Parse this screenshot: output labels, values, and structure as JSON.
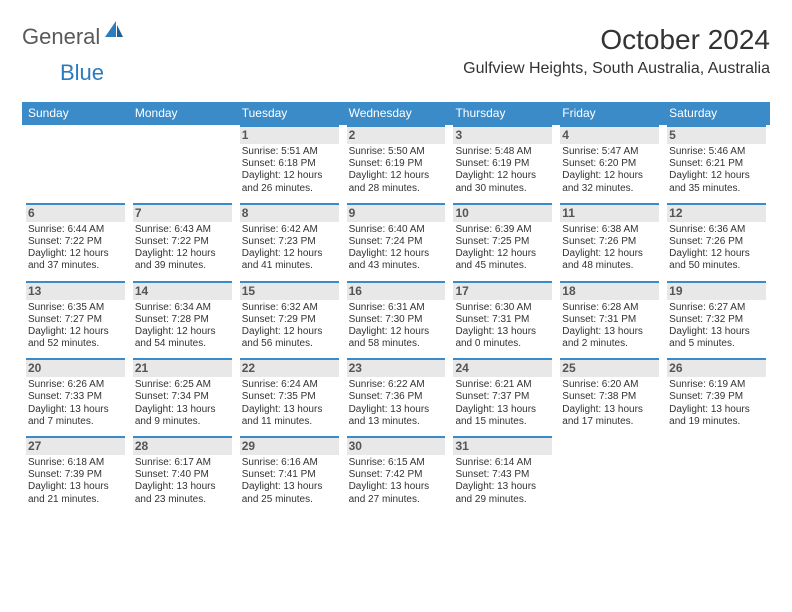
{
  "logo": {
    "text1": "General",
    "text2": "Blue"
  },
  "header": {
    "month": "October 2024",
    "location": "Gulfview Heights, South Australia, Australia"
  },
  "colors": {
    "header_bg": "#3b8bc9",
    "header_fg": "#ffffff",
    "daynum_bg": "#e8e8e8",
    "daynum_border": "#3b8bc9",
    "daynum_fg": "#555555",
    "body_fg": "#333333",
    "logo_gray": "#5a5a5a",
    "logo_blue": "#2b7bbf",
    "page_bg": "#ffffff"
  },
  "typography": {
    "month_fontsize": 28,
    "location_fontsize": 16,
    "dow_fontsize": 12,
    "daynum_fontsize": 12,
    "cell_fontsize": 10
  },
  "days_of_week": [
    "Sunday",
    "Monday",
    "Tuesday",
    "Wednesday",
    "Thursday",
    "Friday",
    "Saturday"
  ],
  "weeks": [
    [
      null,
      null,
      {
        "n": "1",
        "sunrise": "Sunrise: 5:51 AM",
        "sunset": "Sunset: 6:18 PM",
        "dl1": "Daylight: 12 hours",
        "dl2": "and 26 minutes."
      },
      {
        "n": "2",
        "sunrise": "Sunrise: 5:50 AM",
        "sunset": "Sunset: 6:19 PM",
        "dl1": "Daylight: 12 hours",
        "dl2": "and 28 minutes."
      },
      {
        "n": "3",
        "sunrise": "Sunrise: 5:48 AM",
        "sunset": "Sunset: 6:19 PM",
        "dl1": "Daylight: 12 hours",
        "dl2": "and 30 minutes."
      },
      {
        "n": "4",
        "sunrise": "Sunrise: 5:47 AM",
        "sunset": "Sunset: 6:20 PM",
        "dl1": "Daylight: 12 hours",
        "dl2": "and 32 minutes."
      },
      {
        "n": "5",
        "sunrise": "Sunrise: 5:46 AM",
        "sunset": "Sunset: 6:21 PM",
        "dl1": "Daylight: 12 hours",
        "dl2": "and 35 minutes."
      }
    ],
    [
      {
        "n": "6",
        "sunrise": "Sunrise: 6:44 AM",
        "sunset": "Sunset: 7:22 PM",
        "dl1": "Daylight: 12 hours",
        "dl2": "and 37 minutes."
      },
      {
        "n": "7",
        "sunrise": "Sunrise: 6:43 AM",
        "sunset": "Sunset: 7:22 PM",
        "dl1": "Daylight: 12 hours",
        "dl2": "and 39 minutes."
      },
      {
        "n": "8",
        "sunrise": "Sunrise: 6:42 AM",
        "sunset": "Sunset: 7:23 PM",
        "dl1": "Daylight: 12 hours",
        "dl2": "and 41 minutes."
      },
      {
        "n": "9",
        "sunrise": "Sunrise: 6:40 AM",
        "sunset": "Sunset: 7:24 PM",
        "dl1": "Daylight: 12 hours",
        "dl2": "and 43 minutes."
      },
      {
        "n": "10",
        "sunrise": "Sunrise: 6:39 AM",
        "sunset": "Sunset: 7:25 PM",
        "dl1": "Daylight: 12 hours",
        "dl2": "and 45 minutes."
      },
      {
        "n": "11",
        "sunrise": "Sunrise: 6:38 AM",
        "sunset": "Sunset: 7:26 PM",
        "dl1": "Daylight: 12 hours",
        "dl2": "and 48 minutes."
      },
      {
        "n": "12",
        "sunrise": "Sunrise: 6:36 AM",
        "sunset": "Sunset: 7:26 PM",
        "dl1": "Daylight: 12 hours",
        "dl2": "and 50 minutes."
      }
    ],
    [
      {
        "n": "13",
        "sunrise": "Sunrise: 6:35 AM",
        "sunset": "Sunset: 7:27 PM",
        "dl1": "Daylight: 12 hours",
        "dl2": "and 52 minutes."
      },
      {
        "n": "14",
        "sunrise": "Sunrise: 6:34 AM",
        "sunset": "Sunset: 7:28 PM",
        "dl1": "Daylight: 12 hours",
        "dl2": "and 54 minutes."
      },
      {
        "n": "15",
        "sunrise": "Sunrise: 6:32 AM",
        "sunset": "Sunset: 7:29 PM",
        "dl1": "Daylight: 12 hours",
        "dl2": "and 56 minutes."
      },
      {
        "n": "16",
        "sunrise": "Sunrise: 6:31 AM",
        "sunset": "Sunset: 7:30 PM",
        "dl1": "Daylight: 12 hours",
        "dl2": "and 58 minutes."
      },
      {
        "n": "17",
        "sunrise": "Sunrise: 6:30 AM",
        "sunset": "Sunset: 7:31 PM",
        "dl1": "Daylight: 13 hours",
        "dl2": "and 0 minutes."
      },
      {
        "n": "18",
        "sunrise": "Sunrise: 6:28 AM",
        "sunset": "Sunset: 7:31 PM",
        "dl1": "Daylight: 13 hours",
        "dl2": "and 2 minutes."
      },
      {
        "n": "19",
        "sunrise": "Sunrise: 6:27 AM",
        "sunset": "Sunset: 7:32 PM",
        "dl1": "Daylight: 13 hours",
        "dl2": "and 5 minutes."
      }
    ],
    [
      {
        "n": "20",
        "sunrise": "Sunrise: 6:26 AM",
        "sunset": "Sunset: 7:33 PM",
        "dl1": "Daylight: 13 hours",
        "dl2": "and 7 minutes."
      },
      {
        "n": "21",
        "sunrise": "Sunrise: 6:25 AM",
        "sunset": "Sunset: 7:34 PM",
        "dl1": "Daylight: 13 hours",
        "dl2": "and 9 minutes."
      },
      {
        "n": "22",
        "sunrise": "Sunrise: 6:24 AM",
        "sunset": "Sunset: 7:35 PM",
        "dl1": "Daylight: 13 hours",
        "dl2": "and 11 minutes."
      },
      {
        "n": "23",
        "sunrise": "Sunrise: 6:22 AM",
        "sunset": "Sunset: 7:36 PM",
        "dl1": "Daylight: 13 hours",
        "dl2": "and 13 minutes."
      },
      {
        "n": "24",
        "sunrise": "Sunrise: 6:21 AM",
        "sunset": "Sunset: 7:37 PM",
        "dl1": "Daylight: 13 hours",
        "dl2": "and 15 minutes."
      },
      {
        "n": "25",
        "sunrise": "Sunrise: 6:20 AM",
        "sunset": "Sunset: 7:38 PM",
        "dl1": "Daylight: 13 hours",
        "dl2": "and 17 minutes."
      },
      {
        "n": "26",
        "sunrise": "Sunrise: 6:19 AM",
        "sunset": "Sunset: 7:39 PM",
        "dl1": "Daylight: 13 hours",
        "dl2": "and 19 minutes."
      }
    ],
    [
      {
        "n": "27",
        "sunrise": "Sunrise: 6:18 AM",
        "sunset": "Sunset: 7:39 PM",
        "dl1": "Daylight: 13 hours",
        "dl2": "and 21 minutes."
      },
      {
        "n": "28",
        "sunrise": "Sunrise: 6:17 AM",
        "sunset": "Sunset: 7:40 PM",
        "dl1": "Daylight: 13 hours",
        "dl2": "and 23 minutes."
      },
      {
        "n": "29",
        "sunrise": "Sunrise: 6:16 AM",
        "sunset": "Sunset: 7:41 PM",
        "dl1": "Daylight: 13 hours",
        "dl2": "and 25 minutes."
      },
      {
        "n": "30",
        "sunrise": "Sunrise: 6:15 AM",
        "sunset": "Sunset: 7:42 PM",
        "dl1": "Daylight: 13 hours",
        "dl2": "and 27 minutes."
      },
      {
        "n": "31",
        "sunrise": "Sunrise: 6:14 AM",
        "sunset": "Sunset: 7:43 PM",
        "dl1": "Daylight: 13 hours",
        "dl2": "and 29 minutes."
      },
      null,
      null
    ]
  ]
}
